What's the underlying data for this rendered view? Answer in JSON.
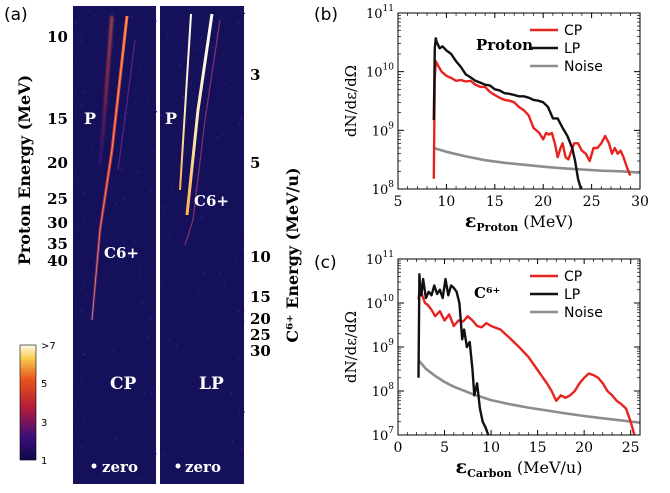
{
  "panel_labels": {
    "a": "(a)",
    "b": "(b)",
    "c": "(c)"
  },
  "left_panel": {
    "proton_axis_label": "Proton Energy (MeV)",
    "carbon_axis_label": "C⁶⁺ Energy (MeV/u)",
    "proton_ticks": [
      "10",
      "15",
      "20",
      "25",
      "30",
      "35",
      "40"
    ],
    "carbon_ticks": [
      "3",
      "5",
      "10",
      "15",
      "20",
      "25",
      "30"
    ],
    "colorbar_ticks": [
      ">7",
      "5",
      "3",
      "1"
    ],
    "cp_label": "CP",
    "lp_label": "LP",
    "p_label": "P",
    "c6_label": "C6+",
    "zero_label": "zero"
  },
  "chart_data": [
    {
      "type": "line",
      "panel": "(b)",
      "annotation": "Proton",
      "xlabel": "εProton (MeV)",
      "ylabel": "dN/dε/dΩ",
      "xlim": [
        5,
        30
      ],
      "ylim_log10": [
        8,
        11
      ],
      "yscale": "log",
      "x_ticks": [
        5,
        10,
        15,
        20,
        25,
        30
      ],
      "y_ticks": [
        "10^8",
        "10^9",
        "10^10",
        "10^11"
      ],
      "legend_position": "top-right",
      "series": [
        {
          "name": "CP",
          "color": "#e8231f",
          "x": [
            8.7,
            8.8,
            8.9,
            9.1,
            9.5,
            10.0,
            10.5,
            11.0,
            11.5,
            12.0,
            12.5,
            13.0,
            13.5,
            14.0,
            14.5,
            15.0,
            15.5,
            16.0,
            16.5,
            17.0,
            17.5,
            18.0,
            18.5,
            19.0,
            19.3,
            19.6,
            20.0,
            20.3,
            20.6,
            20.9,
            21.2,
            21.5,
            21.8,
            22.0,
            22.3,
            22.6,
            22.8,
            23.2,
            23.6,
            24.0,
            24.4,
            24.8,
            25.2,
            25.6,
            26.0,
            26.4,
            26.8,
            27.1,
            27.4,
            27.7,
            28.0,
            28.3,
            28.6,
            28.8,
            29.0
          ],
          "y": [
            150000000.0,
            8000000000.0,
            15000000000.0,
            13000000000.0,
            10000000000.0,
            8500000000.0,
            7800000000.0,
            7000000000.0,
            7200000000.0,
            6800000000.0,
            7000000000.0,
            6000000000.0,
            5500000000.0,
            5500000000.0,
            4500000000.0,
            4000000000.0,
            3600000000.0,
            3300000000.0,
            3200000000.0,
            3000000000.0,
            2500000000.0,
            2200000000.0,
            1800000000.0,
            1100000000.0,
            1000000000.0,
            900000000.0,
            700000000.0,
            900000000.0,
            850000000.0,
            900000000.0,
            600000000.0,
            350000000.0,
            500000000.0,
            600000000.0,
            350000000.0,
            320000000.0,
            400000000.0,
            600000000.0,
            600000000.0,
            450000000.0,
            400000000.0,
            300000000.0,
            500000000.0,
            500000000.0,
            600000000.0,
            800000000.0,
            600000000.0,
            400000000.0,
            500000000.0,
            400000000.0,
            450000000.0,
            350000000.0,
            250000000.0,
            200000000.0,
            170000000.0
          ]
        },
        {
          "name": "LP",
          "color": "#111111",
          "x": [
            8.7,
            8.8,
            8.9,
            9.0,
            9.3,
            9.6,
            10.0,
            10.5,
            11.0,
            11.5,
            12.0,
            12.5,
            13.0,
            13.5,
            14.0,
            14.5,
            15.0,
            15.5,
            16.0,
            16.5,
            17.0,
            17.5,
            18.0,
            18.5,
            19.0,
            19.5,
            20.0,
            20.5,
            21.0,
            21.5,
            22.0,
            22.5,
            23.0,
            23.3,
            23.6,
            23.9
          ],
          "y": [
            1500000000.0,
            25000000000.0,
            37000000000.0,
            32000000000.0,
            25000000000.0,
            27000000000.0,
            23000000000.0,
            20000000000.0,
            15000000000.0,
            12000000000.0,
            9000000000.0,
            8000000000.0,
            7000000000.0,
            6500000000.0,
            6000000000.0,
            5800000000.0,
            5000000000.0,
            4800000000.0,
            4300000000.0,
            4200000000.0,
            4000000000.0,
            3800000000.0,
            3800000000.0,
            3600000000.0,
            3300000000.0,
            3200000000.0,
            3000000000.0,
            2500000000.0,
            1600000000.0,
            1600000000.0,
            1100000000.0,
            800000000.0,
            500000000.0,
            300000000.0,
            150000000.0,
            100000000.0
          ]
        },
        {
          "name": "Noise",
          "color": "#8c8c8c",
          "x": [
            8.7,
            10,
            12,
            14,
            16,
            18,
            20,
            22,
            24,
            26,
            28,
            30
          ],
          "y": [
            500000000.0,
            430000000.0,
            360000000.0,
            310000000.0,
            280000000.0,
            260000000.0,
            240000000.0,
            225000000.0,
            215000000.0,
            205000000.0,
            200000000.0,
            190000000.0
          ]
        }
      ]
    },
    {
      "type": "line",
      "panel": "(c)",
      "annotation": "C⁶⁺",
      "xlabel": "εCarbon (MeV/u)",
      "ylabel": "dN/dε/dΩ",
      "xlim": [
        0,
        26
      ],
      "ylim_log10": [
        7,
        11
      ],
      "yscale": "log",
      "x_ticks": [
        0,
        5,
        10,
        15,
        20,
        25
      ],
      "y_ticks": [
        "10^7",
        "10^8",
        "10^9",
        "10^10",
        "10^11"
      ],
      "legend_position": "top-right",
      "series": [
        {
          "name": "CP",
          "color": "#e8231f",
          "x": [
            2.2,
            2.4,
            2.6,
            2.9,
            3.2,
            3.6,
            4.0,
            4.5,
            5.0,
            5.5,
            6.0,
            6.5,
            7.0,
            7.5,
            8.0,
            8.5,
            9.0,
            9.5,
            10.0,
            11.0,
            12.0,
            13.0,
            14.0,
            15.0,
            16.0,
            16.5,
            17.0,
            17.5,
            18.0,
            18.5,
            19.0,
            19.5,
            20.0,
            20.5,
            21.0,
            21.5,
            22.0,
            22.5,
            23.0,
            23.5,
            24.0,
            24.5,
            25.0,
            25.4
          ],
          "y": [
            12000000000.0,
            25000000000.0,
            15000000000.0,
            10000000000.0,
            9000000000.0,
            7000000000.0,
            5000000000.0,
            6500000000.0,
            4000000000.0,
            5500000000.0,
            3000000000.0,
            4000000000.0,
            3800000000.0,
            5000000000.0,
            4000000000.0,
            3000000000.0,
            2800000000.0,
            3500000000.0,
            3000000000.0,
            2500000000.0,
            1600000000.0,
            1000000000.0,
            600000000.0,
            300000000.0,
            150000000.0,
            100000000.0,
            60000000.0,
            80000000.0,
            70000000.0,
            80000000.0,
            100000000.0,
            150000000.0,
            200000000.0,
            250000000.0,
            230000000.0,
            200000000.0,
            150000000.0,
            100000000.0,
            80000000.0,
            60000000.0,
            50000000.0,
            40000000.0,
            20000000.0,
            10000000.0
          ]
        },
        {
          "name": "LP",
          "color": "#111111",
          "x": [
            2.2,
            2.3,
            2.4,
            2.5,
            2.7,
            3.0,
            3.3,
            3.6,
            3.9,
            4.2,
            4.5,
            4.8,
            5.1,
            5.4,
            5.7,
            6.0,
            6.3,
            6.6,
            6.9,
            7.1,
            7.4,
            7.7,
            8.0,
            8.2,
            8.5,
            8.8,
            9.1,
            9.4,
            9.7
          ],
          "y": [
            200000000.0,
            45000000000.0,
            20000000000.0,
            15000000000.0,
            35000000000.0,
            13000000000.0,
            18000000000.0,
            15000000000.0,
            25000000000.0,
            16000000000.0,
            20000000000.0,
            13000000000.0,
            35000000000.0,
            15000000000.0,
            25000000000.0,
            22000000000.0,
            18000000000.0,
            10000000000.0,
            1500000000.0,
            2500000000.0,
            1000000000.0,
            1300000000.0,
            300000000.0,
            80000000.0,
            150000000.0,
            40000000.0,
            20000000.0,
            15000000.0,
            10000000.0
          ]
        },
        {
          "name": "Noise",
          "color": "#8c8c8c",
          "x": [
            2.2,
            3,
            4,
            5,
            6,
            8,
            10,
            12,
            14,
            16,
            18,
            20,
            22,
            24,
            26
          ],
          "y": [
            500000000.0,
            320000000.0,
            220000000.0,
            160000000.0,
            125000000.0,
            85000000.0,
            62000000.0,
            50000000.0,
            42000000.0,
            36000000.0,
            31000000.0,
            27000000.0,
            24000000.0,
            21500000.0,
            19000000.0
          ]
        }
      ]
    }
  ]
}
